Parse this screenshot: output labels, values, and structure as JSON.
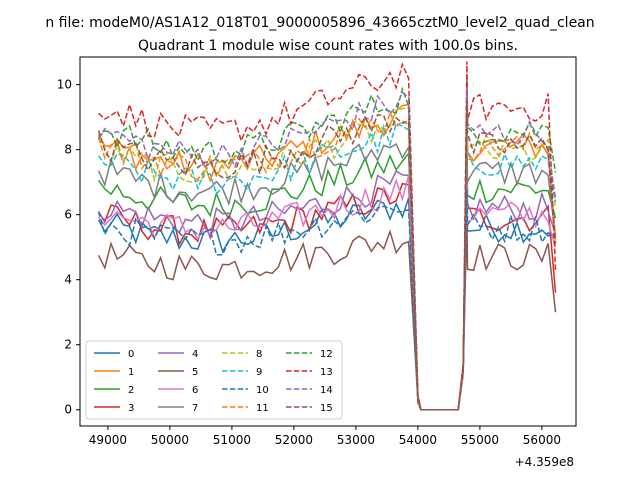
{
  "chart_data": {
    "type": "line",
    "suptitle": "n file: modeM0/AS1A12_018T01_9000005896_43665cztM0_level2_quad_clean",
    "title": "Quadrant 1 module wise count rates with 100.0s bins.",
    "xlabel": "",
    "ylabel": "",
    "x_offset_label": "+4.359e8",
    "xlim": [
      48550,
      56550
    ],
    "ylim": [
      -0.5,
      10.85
    ],
    "x_ticks": [
      {
        "value": 49000,
        "label": "49000"
      },
      {
        "value": 50000,
        "label": "50000"
      },
      {
        "value": 51000,
        "label": "51000"
      },
      {
        "value": 52000,
        "label": "52000"
      },
      {
        "value": 53000,
        "label": "53000"
      },
      {
        "value": 54000,
        "label": "54000"
      },
      {
        "value": 55000,
        "label": "55000"
      },
      {
        "value": 56000,
        "label": "56000"
      }
    ],
    "y_ticks": [
      {
        "value": 0,
        "label": "0"
      },
      {
        "value": 2,
        "label": "2"
      },
      {
        "value": 4,
        "label": "4"
      },
      {
        "value": 6,
        "label": "6"
      },
      {
        "value": 8,
        "label": "8"
      },
      {
        "value": 10,
        "label": "10"
      }
    ],
    "x_start": 48850,
    "bin": 100,
    "gap_start": 54000,
    "gap_end": 54650,
    "x_end": 56220,
    "grid": false,
    "legend": {
      "placement": "lower-left",
      "columns": 4
    },
    "series": [
      {
        "name": "0",
        "color": "#1f77b4",
        "dash": "solid",
        "base": 5.7,
        "end": 5.4
      },
      {
        "name": "1",
        "color": "#ff7f0e",
        "dash": "solid",
        "base": 8.2,
        "end": 5.3
      },
      {
        "name": "2",
        "color": "#2ca02c",
        "dash": "solid",
        "base": 6.9,
        "end": 5.9
      },
      {
        "name": "3",
        "color": "#d62728",
        "dash": "solid",
        "base": 6.0,
        "end": 3.6
      },
      {
        "name": "4",
        "color": "#9467bd",
        "dash": "solid",
        "base": 6.3,
        "end": 5.4
      },
      {
        "name": "5",
        "color": "#8c564b",
        "dash": "solid",
        "base": 4.8,
        "end": 3.0
      },
      {
        "name": "6",
        "color": "#e377c2",
        "dash": "solid",
        "base": 6.1,
        "end": 5.0
      },
      {
        "name": "7",
        "color": "#7f7f7f",
        "dash": "solid",
        "base": 7.4,
        "end": 5.3
      },
      {
        "name": "8",
        "color": "#bcbd22",
        "dash": "dashed",
        "base": 8.0,
        "end": 6.2
      },
      {
        "name": "9",
        "color": "#17becf",
        "dash": "dashed",
        "base": 7.7,
        "end": 6.4
      },
      {
        "name": "10",
        "color": "#1f77b4",
        "dash": "dashed",
        "base": 5.7,
        "end": 5.3
      },
      {
        "name": "11",
        "color": "#ff7f0e",
        "dash": "dashed",
        "base": 8.2,
        "end": 5.2
      },
      {
        "name": "12",
        "color": "#2ca02c",
        "dash": "dashed",
        "base": 8.7,
        "end": 7.3
      },
      {
        "name": "13",
        "color": "#d62728",
        "dash": "dashed",
        "base": 9.4,
        "end": 4.3
      },
      {
        "name": "14",
        "color": "#9467bd",
        "dash": "dashed",
        "base": 8.6,
        "end": 6.5
      },
      {
        "name": "15",
        "color": "#8c564b",
        "dash": "dashed",
        "base": 8.2,
        "end": 5.1
      }
    ]
  }
}
